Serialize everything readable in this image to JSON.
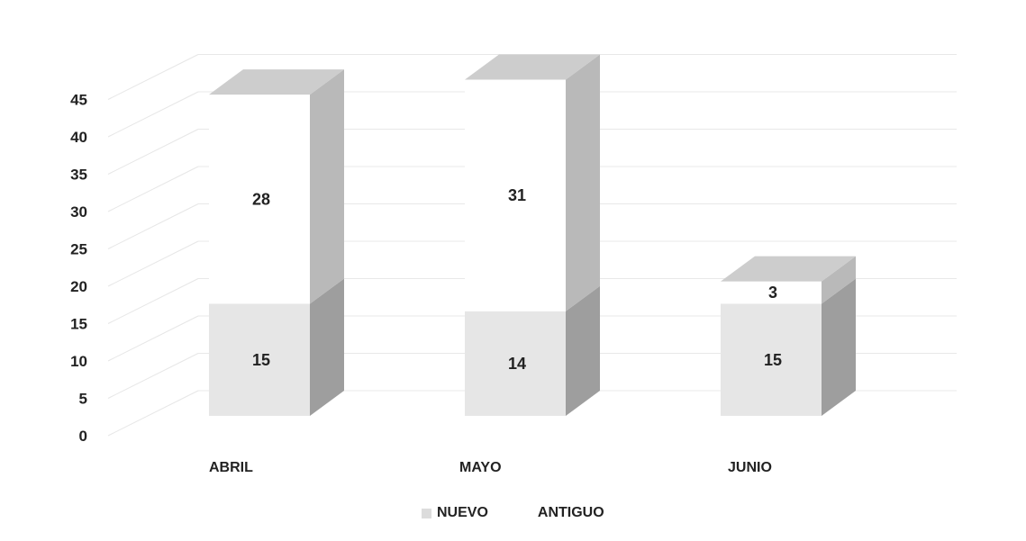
{
  "chart_data": {
    "type": "bar",
    "stacked": true,
    "style": "3d",
    "categories": [
      "ABRIL",
      "MAYO",
      "JUNIO"
    ],
    "series": [
      {
        "name": "NUEVO",
        "values": [
          15,
          14,
          15
        ],
        "color": "#e6e6e6"
      },
      {
        "name": "ANTIGUO",
        "values": [
          28,
          31,
          3
        ],
        "color": "#ffffff"
      }
    ],
    "yticks": [
      "0",
      "5",
      "10",
      "15",
      "20",
      "25",
      "30",
      "35",
      "40",
      "45"
    ],
    "ylim": [
      0,
      45
    ],
    "grid": true,
    "legend": "bottom",
    "title": "",
    "xlabel": "",
    "ylabel": ""
  }
}
